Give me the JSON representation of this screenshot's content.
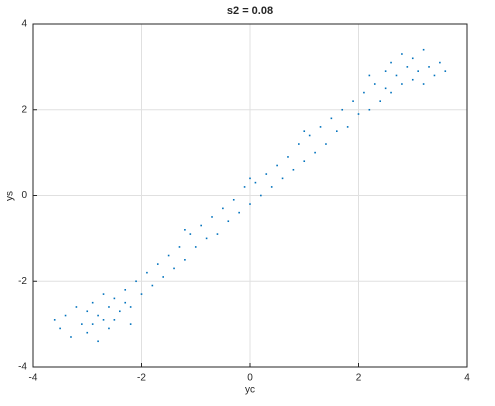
{
  "chart_data": {
    "type": "scatter",
    "title": "s2 = 0.08",
    "xlabel": "yc",
    "ylabel": "ys",
    "color": "#0072bd",
    "grid": true,
    "xlim": [
      -4,
      4
    ],
    "xticks": [
      -4,
      -2,
      0,
      2,
      4
    ],
    "ylim": [
      -4,
      4
    ],
    "yticks": [
      -4,
      -2,
      0,
      2,
      4
    ],
    "x": [
      -3.5,
      -3.4,
      -3.3,
      -3.2,
      -3.1,
      -3.0,
      -3.0,
      -2.9,
      -2.9,
      -2.8,
      -2.8,
      -2.7,
      -2.7,
      -2.6,
      -2.6,
      -2.5,
      -2.5,
      -2.4,
      -2.3,
      -2.3,
      -2.2,
      -2.1,
      -2.0,
      -1.9,
      -1.8,
      -1.7,
      -1.6,
      -1.5,
      -1.4,
      -1.3,
      -1.2,
      -1.1,
      -1.0,
      -0.9,
      -0.8,
      -0.7,
      -0.6,
      -0.5,
      -0.4,
      -0.3,
      -0.2,
      -0.1,
      0.0,
      0.1,
      0.2,
      0.3,
      0.4,
      0.5,
      0.6,
      0.7,
      0.8,
      0.9,
      1.0,
      1.1,
      1.2,
      1.3,
      1.4,
      1.5,
      1.6,
      1.7,
      1.8,
      1.9,
      2.0,
      2.1,
      2.2,
      2.3,
      2.4,
      2.5,
      2.5,
      2.6,
      2.6,
      2.7,
      2.8,
      2.8,
      2.9,
      3.0,
      3.0,
      3.1,
      3.2,
      3.2,
      3.3,
      3.4,
      3.5,
      3.6,
      2.2,
      -2.2,
      -3.6,
      -1.2,
      1.0,
      0.0
    ],
    "values": [
      -3.1,
      -2.8,
      -3.3,
      -2.6,
      -3.0,
      -2.7,
      -3.2,
      -2.5,
      -3.0,
      -2.8,
      -3.4,
      -2.3,
      -2.9,
      -3.1,
      -2.6,
      -2.4,
      -2.9,
      -2.7,
      -2.2,
      -2.5,
      -2.6,
      -2.0,
      -2.3,
      -1.8,
      -2.1,
      -1.6,
      -1.9,
      -1.4,
      -1.7,
      -1.2,
      -1.5,
      -0.9,
      -1.2,
      -0.7,
      -1.0,
      -0.5,
      -0.9,
      -0.3,
      -0.6,
      -0.1,
      -0.4,
      0.2,
      -0.2,
      0.3,
      0.0,
      0.5,
      0.2,
      0.7,
      0.4,
      0.9,
      0.6,
      1.2,
      0.8,
      1.4,
      1.0,
      1.6,
      1.2,
      1.8,
      1.5,
      2.0,
      1.6,
      2.2,
      1.9,
      2.4,
      2.0,
      2.6,
      2.2,
      2.9,
      2.5,
      3.1,
      2.4,
      2.8,
      3.3,
      2.6,
      3.0,
      2.7,
      3.2,
      2.9,
      2.6,
      3.4,
      3.0,
      2.8,
      3.1,
      2.9,
      2.8,
      -3.0,
      -2.9,
      -0.8,
      1.5,
      0.4
    ]
  }
}
